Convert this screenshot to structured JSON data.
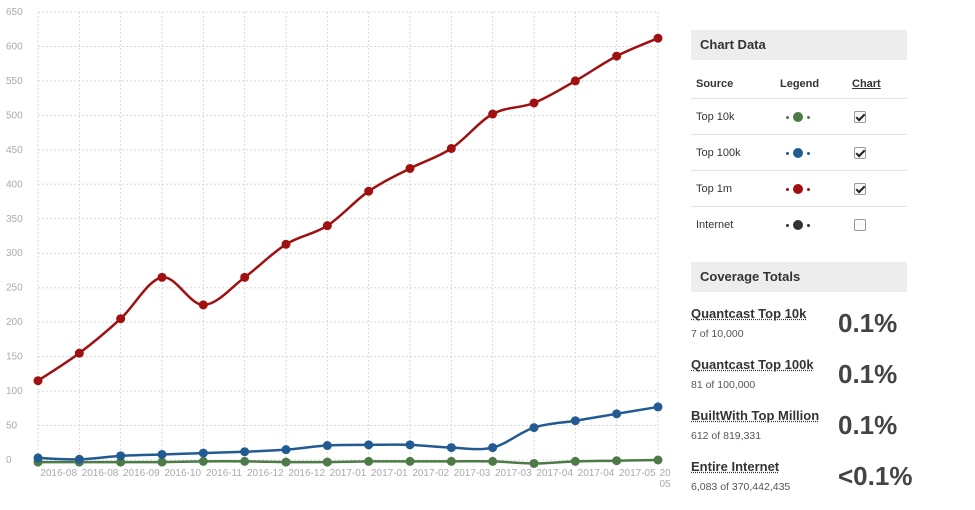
{
  "chart_data": {
    "type": "line",
    "categories": [
      "2016-08",
      "2016-08",
      "2016-09",
      "2016-10",
      "2016-11",
      "2016-12",
      "2016-12",
      "2017-01",
      "2017-01",
      "2017-02",
      "2017-03",
      "2017-03",
      "2017-04",
      "2017-04",
      "2017-05",
      "20"
    ],
    "x_tick_labels": [
      "2016-08",
      "2016-08",
      "2016-09",
      "2016-10",
      "2016-11",
      "2016-12",
      "2016-12",
      "2017-01",
      "2017-01",
      "2017-02",
      "2017-03",
      "2017-03",
      "2017-04",
      "2017-04",
      "2017-05",
      "20"
    ],
    "x_tick_overflow": "05",
    "ylim": [
      0,
      650
    ],
    "yticks": [
      0,
      50,
      100,
      150,
      200,
      250,
      300,
      350,
      400,
      450,
      500,
      550,
      600,
      650
    ],
    "grid": true,
    "legend_position": "right",
    "series": [
      {
        "name": "Top 1m",
        "color": "#a01010",
        "values": [
          115,
          155,
          205,
          265,
          225,
          265,
          313,
          340,
          390,
          423,
          452,
          502,
          518,
          550,
          586,
          612
        ]
      },
      {
        "name": "Top 100k",
        "color": "#225b91",
        "values": [
          3,
          1,
          6,
          8,
          10,
          12,
          15,
          21,
          22,
          22,
          18,
          18,
          47,
          57,
          67,
          77
        ]
      },
      {
        "name": "Top 10k",
        "color": "#4e7a47",
        "values": [
          -3,
          -3,
          -3,
          -3,
          -2,
          -2,
          -3,
          -3,
          -2,
          -2,
          -2,
          -2,
          -5,
          -2,
          -1,
          0
        ]
      }
    ]
  },
  "chart_panel": {
    "title": "Chart Data",
    "col_source": "Source",
    "col_legend": "Legend",
    "col_chart": "Chart",
    "rows": [
      {
        "source": "Top 10k",
        "color": "#4e7a47",
        "checked": true
      },
      {
        "source": "Top 100k",
        "color": "#225b91",
        "checked": true
      },
      {
        "source": "Top 1m",
        "color": "#a01010",
        "checked": true
      },
      {
        "source": "Internet",
        "color": "#333333",
        "checked": false
      }
    ]
  },
  "coverage": {
    "title": "Coverage Totals",
    "items": [
      {
        "name": "Quantcast Top 10k",
        "sub": "7 of 10,000",
        "pct": "0.1%"
      },
      {
        "name": "Quantcast Top 100k",
        "sub": "81 of 100,000",
        "pct": "0.1%"
      },
      {
        "name": "BuiltWith Top Million",
        "sub": "612 of 819,331",
        "pct": "0.1%"
      },
      {
        "name": "Entire Internet",
        "sub": "6,083 of 370,442,435",
        "pct": "<0.1%"
      }
    ]
  }
}
